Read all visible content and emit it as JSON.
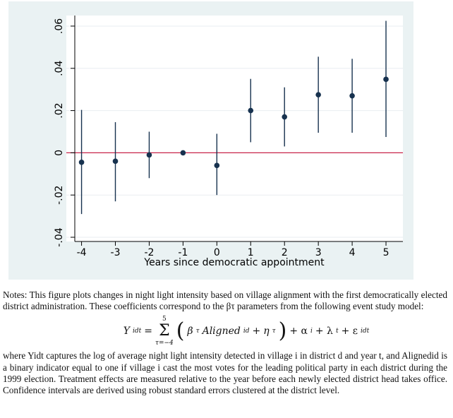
{
  "chart_data": {
    "type": "scatter",
    "subtype": "coefficient-plot-with-confidence-intervals",
    "title": "",
    "xlabel": "Years since democratic appointment",
    "ylabel": "",
    "x": [
      -4,
      -3,
      -2,
      -1,
      0,
      1,
      2,
      3,
      4,
      5
    ],
    "x_tick_labels": [
      "-4",
      "-3",
      "-2",
      "-1",
      "0",
      "1",
      "2",
      "3",
      "4",
      "5"
    ],
    "estimates": [
      -0.0045,
      -0.004,
      -0.001,
      0.0,
      -0.006,
      0.02,
      0.017,
      0.0275,
      0.027,
      0.0348
    ],
    "ci_lower": [
      -0.029,
      -0.023,
      -0.012,
      0.0,
      -0.02,
      0.005,
      0.003,
      0.0095,
      0.0095,
      0.0075
    ],
    "ci_upper": [
      0.0203,
      0.0145,
      0.01,
      0.0,
      0.009,
      0.035,
      0.031,
      0.0455,
      0.0445,
      0.0625
    ],
    "y_ticks": [
      -0.04,
      -0.02,
      0,
      0.02,
      0.04,
      0.06
    ],
    "y_tick_labels": [
      "-.04",
      "-.02",
      "0",
      ".02",
      ".04",
      ".06"
    ],
    "xlim": [
      -4.45,
      5.5
    ],
    "ylim": [
      -0.042,
      0.065
    ],
    "reference_line": {
      "y": 0,
      "color": "#c8254a"
    },
    "grid": true,
    "colors": {
      "marker": "#17324f",
      "background": "#eaf2f3",
      "plot_area": "#ffffff",
      "grid": "#e9eef1"
    }
  },
  "notes": {
    "intro": "Notes: This figure plots changes in night light intensity based on village alignment with the first democratically elected district administration. These coefficients correspond to the βτ parameters from the following event study model:",
    "formula": {
      "lhs": "Y",
      "lhs_sub": "idt",
      "sum_upper": "5",
      "sum_lower": "τ=−4",
      "term_beta": "β",
      "term_beta_sub": "τ",
      "term_aligned": "Aligned",
      "term_aligned_sub": "id",
      "term_eta": "η",
      "term_eta_sub": "τ",
      "tail": "+ α",
      "tail_sub": "i",
      "tail2": "+ λ",
      "tail2_sub": "t",
      "tail3": "+ ε",
      "tail3_sub": "idt"
    },
    "body": "where Yidt captures the log of average night light intensity detected in village i in district d and year t, and Alignedid is a binary indicator equal to one if village i cast the most votes for the leading political party in each district during the 1999 election. Treatment effects are measured relative to the year before each newly elected district head takes office. Confidence intervals are derived using robust standard errors clustered at the district level."
  }
}
